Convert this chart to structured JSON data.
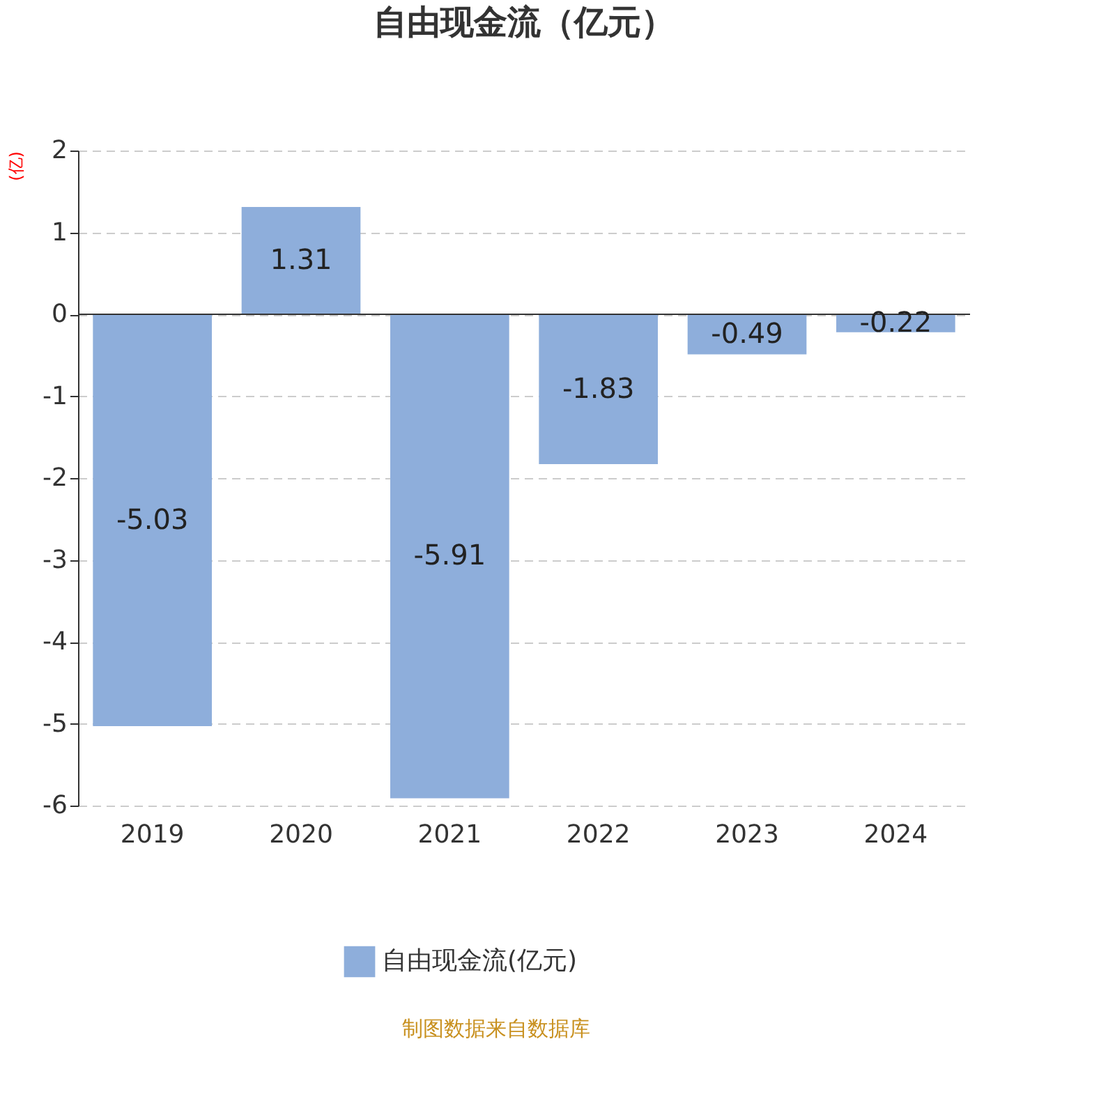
{
  "chart_data": {
    "type": "bar",
    "title": "自由现金流（亿元）",
    "ylabel": "(亿)",
    "categories": [
      "2019",
      "2020",
      "2021",
      "2022",
      "2023",
      "2024"
    ],
    "series": [
      {
        "name": "自由现金流(亿元)",
        "color": "#8eaedb",
        "values": [
          -5.03,
          1.31,
          -5.91,
          -1.83,
          -0.49,
          -0.22
        ]
      }
    ],
    "ylim": [
      -6,
      2
    ],
    "yticks": [
      -6,
      -5,
      -4,
      -3,
      -2,
      -1,
      0,
      1,
      2
    ],
    "grid": "y",
    "legend": "bottom",
    "data_labels": true,
    "annotations": [
      "制图数据来自数据库"
    ]
  }
}
